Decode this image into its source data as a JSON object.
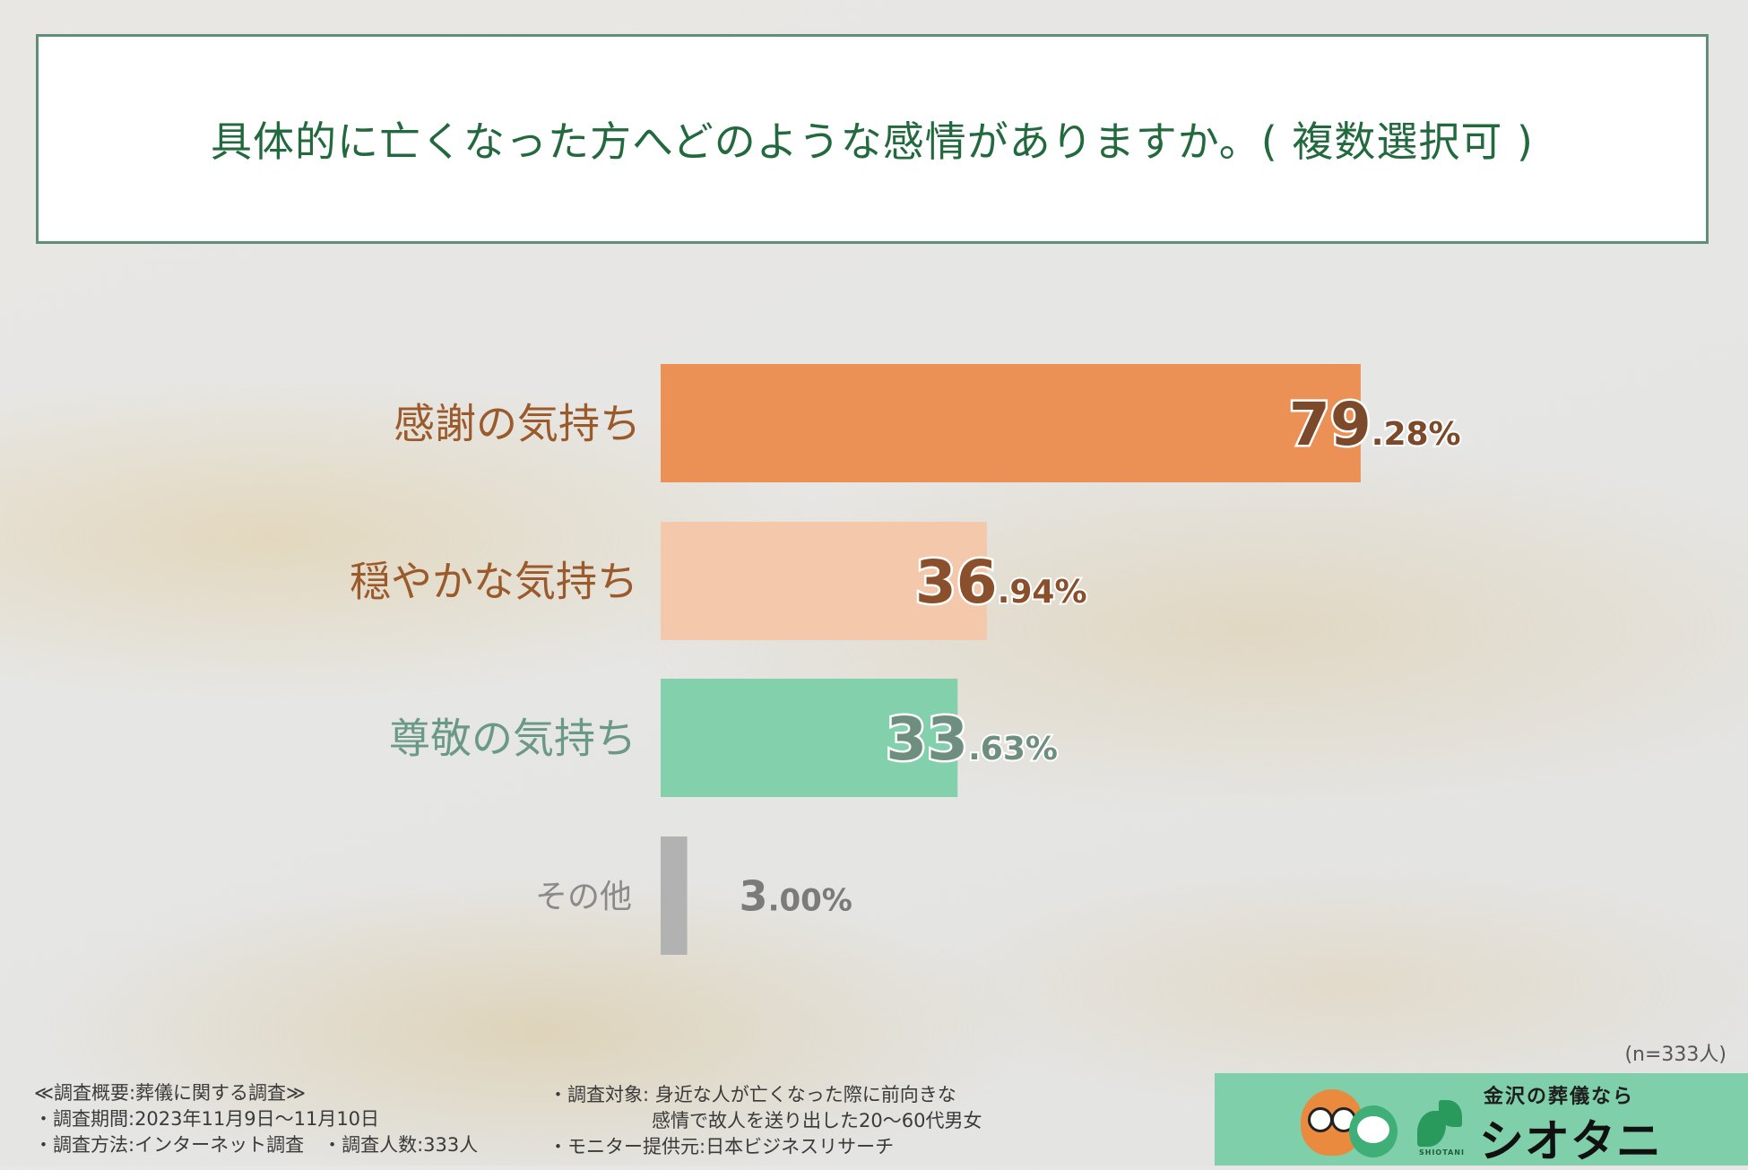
{
  "title": "具体的に亡くなった方へどのような感情がありますか。( 複数選択可 )",
  "chart_data": {
    "type": "bar",
    "orientation": "horizontal",
    "categories": [
      "感謝の気持ち",
      "穏やかな気持ち",
      "尊敬の気持ち",
      "その他"
    ],
    "values": [
      79.28,
      36.94,
      33.63,
      3.0
    ],
    "value_labels": [
      {
        "int": "79",
        "dec": ".28%"
      },
      {
        "int": "36",
        "dec": ".94%"
      },
      {
        "int": "33",
        "dec": ".63%"
      },
      {
        "int": "3",
        "dec": ".00%"
      }
    ],
    "colors": [
      "#ec9155",
      "#f3c8ab",
      "#82d0ac",
      "#b2b2b2"
    ],
    "label_colors": [
      "#9b5a2c",
      "#9b5a2c",
      "#6a9a86",
      "#8a8a8a"
    ],
    "value_colors": [
      "#7c4a2a",
      "#8a4f2b",
      "#6e8f80",
      "#7b7b7b"
    ],
    "xlim": [
      0,
      100
    ]
  },
  "sample_note": "(n=333人)",
  "footer": {
    "left": [
      "≪調査概要:葬儀に関する調査≫",
      "・調査期間:2023年11月9日〜11月10日",
      "・調査方法:インターネット調査　・調査人数:333人"
    ],
    "mid": [
      "・調査対象: 身近な人が亡くなった際に前向きな",
      "感情で故人を送り出した20〜60代男女",
      "・モニター提供元:日本ビジネスリサーチ"
    ]
  },
  "logo": {
    "tagline": "金沢の葬儀なら",
    "name": "シオタニ",
    "sub": "SHIOTANI"
  }
}
